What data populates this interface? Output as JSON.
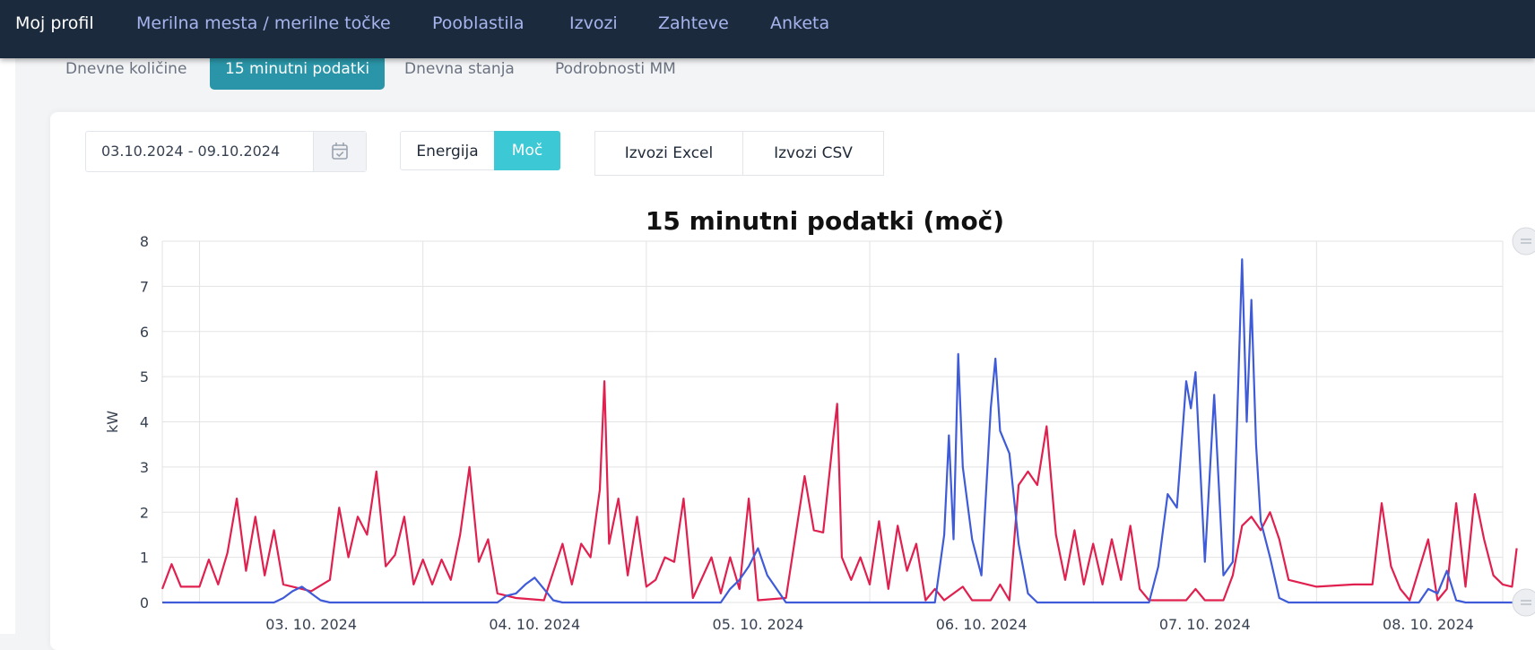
{
  "nav": {
    "items": [
      {
        "label": "Moj profil",
        "active": true
      },
      {
        "label": "Merilna mesta / merilne točke",
        "active": false
      },
      {
        "label": "Pooblastila",
        "active": false
      },
      {
        "label": "Izvozi",
        "active": false
      },
      {
        "label": "Zahteve",
        "active": false
      },
      {
        "label": "Anketa",
        "active": false
      }
    ]
  },
  "subtabs": [
    {
      "label": "Dnevne količine",
      "active": false
    },
    {
      "label": "15 minutni podatki",
      "active": true
    },
    {
      "label": "Dnevna stanja",
      "active": false
    },
    {
      "label": "Podrobnosti MM",
      "active": false
    }
  ],
  "controls": {
    "date_range": "03.10.2024 - 09.10.2024",
    "calendar_icon": "calendar-check-icon",
    "mode_energy": "Energija",
    "mode_power": "Moč",
    "export_excel": "Izvozi Excel",
    "export_csv": "Izvozi CSV"
  },
  "colors": {
    "nav_bg": "#1b2a3d",
    "tab_active": "#2a95a8",
    "toggle_active": "#3cc8d4",
    "series_red": "#e0204f",
    "series_blue": "#3f5bd8"
  },
  "chart_data": {
    "type": "line",
    "title": "15 minutni podatki (moč)",
    "ylabel": "kW",
    "xlabel": "",
    "ylim": [
      0,
      8
    ],
    "yticks": [
      0,
      1,
      2,
      3,
      4,
      5,
      6,
      7,
      8
    ],
    "x_start": "2024-10-02 20:00",
    "x_end": "2024-10-08 20:00",
    "xticks": [
      "03. 10. 2024",
      "04. 10. 2024",
      "05. 10. 2024",
      "06. 10. 2024",
      "07. 10. 2024",
      "08. 10. 2024"
    ],
    "grid": true,
    "series": [
      {
        "color": "#e0204f",
        "points": [
          [
            "2024-10-02 20:00",
            0.3
          ],
          [
            "2024-10-02 21:00",
            0.85
          ],
          [
            "2024-10-02 22:00",
            0.35
          ],
          [
            "2024-10-03 00:00",
            0.35
          ],
          [
            "2024-10-03 01:00",
            0.95
          ],
          [
            "2024-10-03 02:00",
            0.4
          ],
          [
            "2024-10-03 03:00",
            1.1
          ],
          [
            "2024-10-03 04:00",
            2.3
          ],
          [
            "2024-10-03 05:00",
            0.7
          ],
          [
            "2024-10-03 06:00",
            1.9
          ],
          [
            "2024-10-03 07:00",
            0.6
          ],
          [
            "2024-10-03 08:00",
            1.6
          ],
          [
            "2024-10-03 09:00",
            0.4
          ],
          [
            "2024-10-03 12:00",
            0.25
          ],
          [
            "2024-10-03 14:00",
            0.5
          ],
          [
            "2024-10-03 15:00",
            2.1
          ],
          [
            "2024-10-03 16:00",
            1.0
          ],
          [
            "2024-10-03 17:00",
            1.9
          ],
          [
            "2024-10-03 18:00",
            1.5
          ],
          [
            "2024-10-03 19:00",
            2.9
          ],
          [
            "2024-10-03 20:00",
            0.8
          ],
          [
            "2024-10-03 21:00",
            1.05
          ],
          [
            "2024-10-03 22:00",
            1.9
          ],
          [
            "2024-10-03 23:00",
            0.4
          ],
          [
            "2024-10-04 00:00",
            0.95
          ],
          [
            "2024-10-04 01:00",
            0.4
          ],
          [
            "2024-10-04 02:00",
            0.95
          ],
          [
            "2024-10-04 03:00",
            0.5
          ],
          [
            "2024-10-04 04:00",
            1.5
          ],
          [
            "2024-10-04 05:00",
            3.0
          ],
          [
            "2024-10-04 06:00",
            0.9
          ],
          [
            "2024-10-04 07:00",
            1.4
          ],
          [
            "2024-10-04 08:00",
            0.2
          ],
          [
            "2024-10-04 10:00",
            0.1
          ],
          [
            "2024-10-04 13:00",
            0.05
          ],
          [
            "2024-10-04 15:00",
            1.3
          ],
          [
            "2024-10-04 16:00",
            0.4
          ],
          [
            "2024-10-04 17:00",
            1.3
          ],
          [
            "2024-10-04 18:00",
            1.0
          ],
          [
            "2024-10-04 19:00",
            2.5
          ],
          [
            "2024-10-04 19:30",
            4.9
          ],
          [
            "2024-10-04 20:00",
            1.3
          ],
          [
            "2024-10-04 21:00",
            2.3
          ],
          [
            "2024-10-04 22:00",
            0.6
          ],
          [
            "2024-10-04 23:00",
            1.9
          ],
          [
            "2024-10-05 00:00",
            0.35
          ],
          [
            "2024-10-05 01:00",
            0.5
          ],
          [
            "2024-10-05 02:00",
            1.0
          ],
          [
            "2024-10-05 03:00",
            0.9
          ],
          [
            "2024-10-05 04:00",
            2.3
          ],
          [
            "2024-10-05 05:00",
            0.1
          ],
          [
            "2024-10-05 07:00",
            1.0
          ],
          [
            "2024-10-05 08:00",
            0.2
          ],
          [
            "2024-10-05 09:00",
            1.0
          ],
          [
            "2024-10-05 10:00",
            0.3
          ],
          [
            "2024-10-05 11:00",
            2.3
          ],
          [
            "2024-10-05 12:00",
            0.05
          ],
          [
            "2024-10-05 15:00",
            0.1
          ],
          [
            "2024-10-05 17:00",
            2.8
          ],
          [
            "2024-10-05 18:00",
            1.6
          ],
          [
            "2024-10-05 19:00",
            1.55
          ],
          [
            "2024-10-05 20:00",
            3.5
          ],
          [
            "2024-10-05 20:30",
            4.4
          ],
          [
            "2024-10-05 21:00",
            1.0
          ],
          [
            "2024-10-05 22:00",
            0.5
          ],
          [
            "2024-10-05 23:00",
            1.0
          ],
          [
            "2024-10-06 00:00",
            0.4
          ],
          [
            "2024-10-06 01:00",
            1.8
          ],
          [
            "2024-10-06 02:00",
            0.3
          ],
          [
            "2024-10-06 03:00",
            1.7
          ],
          [
            "2024-10-06 04:00",
            0.7
          ],
          [
            "2024-10-06 05:00",
            1.3
          ],
          [
            "2024-10-06 06:00",
            0.05
          ],
          [
            "2024-10-06 07:00",
            0.3
          ],
          [
            "2024-10-06 08:00",
            0.05
          ],
          [
            "2024-10-06 10:00",
            0.35
          ],
          [
            "2024-10-06 11:00",
            0.05
          ],
          [
            "2024-10-06 13:00",
            0.05
          ],
          [
            "2024-10-06 14:00",
            0.4
          ],
          [
            "2024-10-06 15:00",
            0.05
          ],
          [
            "2024-10-06 16:00",
            2.6
          ],
          [
            "2024-10-06 17:00",
            2.9
          ],
          [
            "2024-10-06 18:00",
            2.6
          ],
          [
            "2024-10-06 19:00",
            3.9
          ],
          [
            "2024-10-06 20:00",
            1.5
          ],
          [
            "2024-10-06 21:00",
            0.5
          ],
          [
            "2024-10-06 22:00",
            1.6
          ],
          [
            "2024-10-06 23:00",
            0.4
          ],
          [
            "2024-10-07 00:00",
            1.3
          ],
          [
            "2024-10-07 01:00",
            0.4
          ],
          [
            "2024-10-07 02:00",
            1.4
          ],
          [
            "2024-10-07 03:00",
            0.5
          ],
          [
            "2024-10-07 04:00",
            1.7
          ],
          [
            "2024-10-07 05:00",
            0.3
          ],
          [
            "2024-10-07 06:00",
            0.05
          ],
          [
            "2024-10-07 10:00",
            0.05
          ],
          [
            "2024-10-07 11:00",
            0.3
          ],
          [
            "2024-10-07 12:00",
            0.05
          ],
          [
            "2024-10-07 14:00",
            0.05
          ],
          [
            "2024-10-07 15:00",
            0.6
          ],
          [
            "2024-10-07 16:00",
            1.7
          ],
          [
            "2024-10-07 17:00",
            1.9
          ],
          [
            "2024-10-07 18:00",
            1.6
          ],
          [
            "2024-10-07 19:00",
            2.0
          ],
          [
            "2024-10-07 20:00",
            1.4
          ],
          [
            "2024-10-07 21:00",
            0.5
          ],
          [
            "2024-10-08 00:00",
            0.35
          ],
          [
            "2024-10-08 04:00",
            0.4
          ],
          [
            "2024-10-08 06:00",
            0.4
          ],
          [
            "2024-10-08 07:00",
            2.2
          ],
          [
            "2024-10-08 08:00",
            0.8
          ],
          [
            "2024-10-08 09:00",
            0.3
          ],
          [
            "2024-10-08 10:00",
            0.05
          ],
          [
            "2024-10-08 12:00",
            1.4
          ],
          [
            "2024-10-08 13:00",
            0.05
          ],
          [
            "2024-10-08 14:00",
            0.3
          ],
          [
            "2024-10-08 15:00",
            2.2
          ],
          [
            "2024-10-08 16:00",
            0.35
          ],
          [
            "2024-10-08 17:00",
            2.4
          ],
          [
            "2024-10-08 18:00",
            1.4
          ],
          [
            "2024-10-08 19:00",
            0.6
          ],
          [
            "2024-10-08 20:00",
            0.4
          ],
          [
            "2024-10-08 21:00",
            0.35
          ],
          [
            "2024-10-08 21:30",
            1.2
          ]
        ]
      },
      {
        "color": "#3f5bd8",
        "points": [
          [
            "2024-10-02 20:00",
            0
          ],
          [
            "2024-10-03 08:00",
            0
          ],
          [
            "2024-10-03 09:00",
            0.1
          ],
          [
            "2024-10-03 10:00",
            0.25
          ],
          [
            "2024-10-03 11:00",
            0.35
          ],
          [
            "2024-10-03 12:00",
            0.2
          ],
          [
            "2024-10-03 13:00",
            0.05
          ],
          [
            "2024-10-03 14:00",
            0
          ],
          [
            "2024-10-04 08:00",
            0
          ],
          [
            "2024-10-04 09:00",
            0.15
          ],
          [
            "2024-10-04 10:00",
            0.2
          ],
          [
            "2024-10-04 11:00",
            0.4
          ],
          [
            "2024-10-04 12:00",
            0.55
          ],
          [
            "2024-10-04 13:00",
            0.3
          ],
          [
            "2024-10-04 14:00",
            0.05
          ],
          [
            "2024-10-04 15:00",
            0
          ],
          [
            "2024-10-05 08:00",
            0
          ],
          [
            "2024-10-05 09:00",
            0.3
          ],
          [
            "2024-10-05 10:00",
            0.5
          ],
          [
            "2024-10-05 11:00",
            0.8
          ],
          [
            "2024-10-05 12:00",
            1.2
          ],
          [
            "2024-10-05 13:00",
            0.6
          ],
          [
            "2024-10-05 14:00",
            0.3
          ],
          [
            "2024-10-05 15:00",
            0
          ],
          [
            "2024-10-06 07:00",
            0
          ],
          [
            "2024-10-06 08:00",
            1.5
          ],
          [
            "2024-10-06 08:30",
            3.7
          ],
          [
            "2024-10-06 09:00",
            1.4
          ],
          [
            "2024-10-06 09:30",
            5.5
          ],
          [
            "2024-10-06 10:00",
            3.0
          ],
          [
            "2024-10-06 11:00",
            1.4
          ],
          [
            "2024-10-06 12:00",
            0.6
          ],
          [
            "2024-10-06 13:00",
            4.3
          ],
          [
            "2024-10-06 13:30",
            5.4
          ],
          [
            "2024-10-06 14:00",
            3.8
          ],
          [
            "2024-10-06 15:00",
            3.3
          ],
          [
            "2024-10-06 16:00",
            1.3
          ],
          [
            "2024-10-06 17:00",
            0.2
          ],
          [
            "2024-10-06 18:00",
            0
          ],
          [
            "2024-10-07 06:00",
            0
          ],
          [
            "2024-10-07 07:00",
            0.8
          ],
          [
            "2024-10-07 08:00",
            2.4
          ],
          [
            "2024-10-07 09:00",
            2.1
          ],
          [
            "2024-10-07 10:00",
            4.9
          ],
          [
            "2024-10-07 10:30",
            4.3
          ],
          [
            "2024-10-07 11:00",
            5.1
          ],
          [
            "2024-10-07 12:00",
            0.9
          ],
          [
            "2024-10-07 13:00",
            4.6
          ],
          [
            "2024-10-07 14:00",
            0.6
          ],
          [
            "2024-10-07 15:00",
            0.9
          ],
          [
            "2024-10-07 16:00",
            7.6
          ],
          [
            "2024-10-07 16:30",
            4.0
          ],
          [
            "2024-10-07 17:00",
            6.7
          ],
          [
            "2024-10-07 17:30",
            3.5
          ],
          [
            "2024-10-07 18:00",
            1.8
          ],
          [
            "2024-10-07 19:00",
            1.0
          ],
          [
            "2024-10-07 20:00",
            0.1
          ],
          [
            "2024-10-07 21:00",
            0
          ],
          [
            "2024-10-08 11:00",
            0
          ],
          [
            "2024-10-08 12:00",
            0.3
          ],
          [
            "2024-10-08 13:00",
            0.2
          ],
          [
            "2024-10-08 14:00",
            0.7
          ],
          [
            "2024-10-08 15:00",
            0.05
          ],
          [
            "2024-10-08 16:00",
            0
          ],
          [
            "2024-10-08 21:30",
            0
          ]
        ]
      }
    ]
  }
}
